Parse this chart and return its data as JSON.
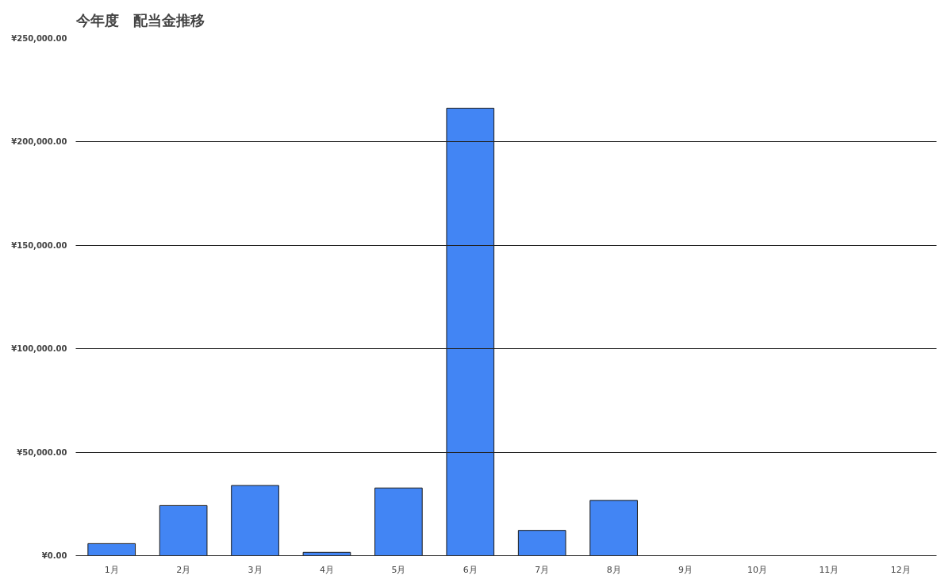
{
  "chart_data": {
    "type": "bar",
    "title": "今年度　配当金推移",
    "categories": [
      "1月",
      "2月",
      "3月",
      "4月",
      "5月",
      "6月",
      "7月",
      "8月",
      "9月",
      "10月",
      "11月",
      "12月"
    ],
    "values": [
      5800,
      24200,
      33900,
      1600,
      32700,
      216300,
      12200,
      26700,
      0,
      0,
      0,
      0
    ],
    "color": "#4285f4",
    "ylim": [
      0,
      250000
    ],
    "yticks": [
      {
        "value": 0,
        "label": "¥0.00"
      },
      {
        "value": 50000,
        "label": "¥50,000.00"
      },
      {
        "value": 100000,
        "label": "¥100,000.00"
      },
      {
        "value": 150000,
        "label": "¥150,000.00"
      },
      {
        "value": 200000,
        "label": "¥200,000.00"
      },
      {
        "value": 250000,
        "label": "¥250,000.00"
      }
    ],
    "grid": "y"
  }
}
